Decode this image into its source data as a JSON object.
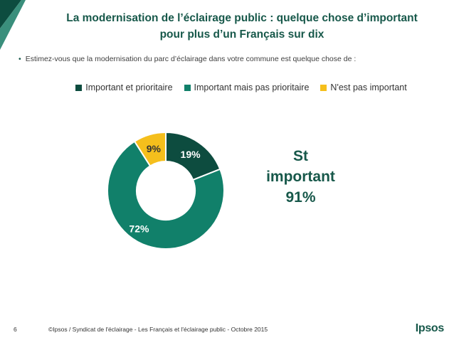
{
  "header": {
    "title_line1": "La modernisation de l’éclairage public : quelque chose d’important",
    "title_line2": "pour plus d’un Français sur dix"
  },
  "question": "Estimez-vous que la modernisation du parc d’éclairage dans votre commune est quelque chose de :",
  "summary": {
    "line1": "St",
    "line2": "important",
    "line3": "91%"
  },
  "footer": {
    "page_number": "6",
    "source": "©Ipsos / Syndicat de l'éclairage - Les Français et l'éclairage public - Octobre 2015",
    "logo": "Ipsos"
  },
  "colors": {
    "dark_green": "#0d4c3f",
    "teal_green": "#11806a",
    "yellow": "#f5bf1c",
    "title_green": "#17584a"
  },
  "chart_data": {
    "type": "pie",
    "variant": "donut",
    "legend_position": "top",
    "series": [
      {
        "name": "Important et prioritaire",
        "value": 19,
        "label": "19%",
        "color": "#0d4c3f"
      },
      {
        "name": "Important mais pas prioritaire",
        "value": 72,
        "label": "72%",
        "color": "#11806a"
      },
      {
        "name": "N'est pas important",
        "value": 9,
        "label": "9%",
        "color": "#f5bf1c"
      }
    ]
  }
}
